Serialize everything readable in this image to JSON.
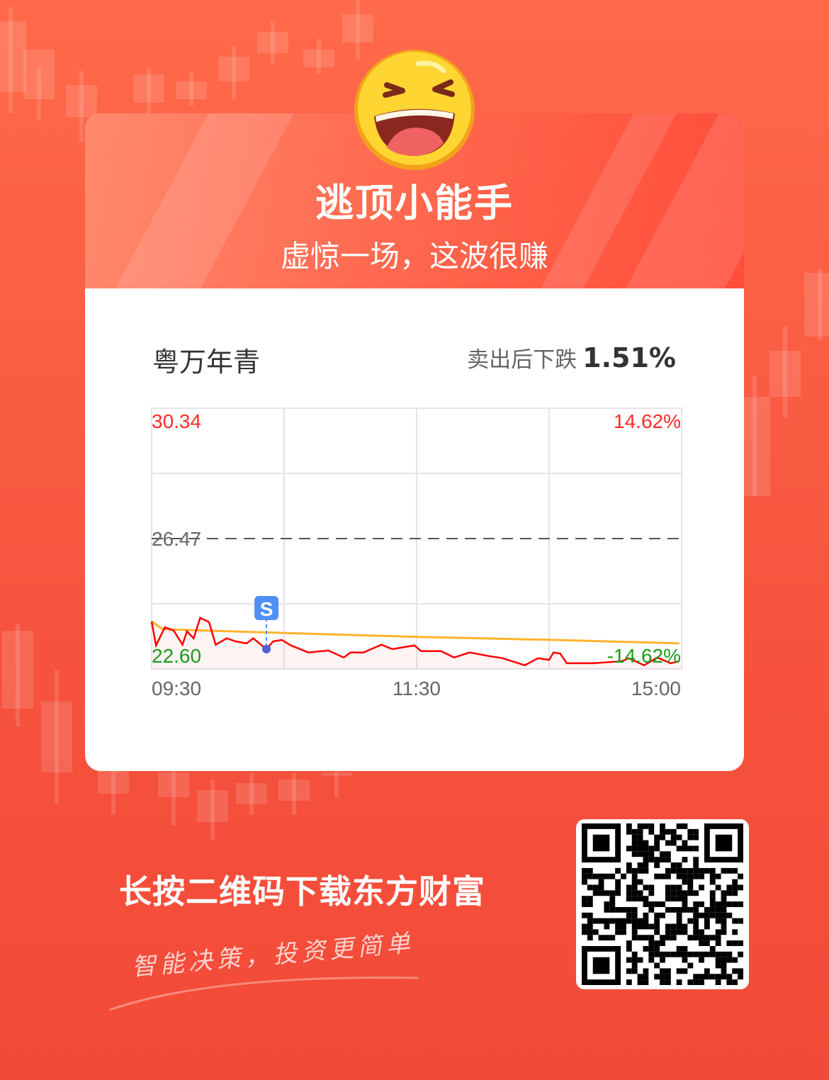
{
  "header": {
    "title": "逃顶小能手",
    "subtitle": "虚惊一场，这波很赚",
    "emoji": "laughing-face-icon"
  },
  "stock": {
    "name": "粤万年青",
    "performance_label": "卖出后下跌",
    "performance_value": "1.51%"
  },
  "chart_data": {
    "type": "line",
    "y_max_label": "30.34",
    "y_min_label": "22.60",
    "y_mid_label": "26.47",
    "pct_max_label": "14.62%",
    "pct_min_label": "-14.62%",
    "ylim": [
      22.6,
      30.34
    ],
    "prev_close": 26.47,
    "x_tick_labels": [
      "09:30",
      "11:30",
      "15:00"
    ],
    "x_range_minutes": [
      0,
      240
    ],
    "grid": true,
    "colors": {
      "price": "#ff0000",
      "average": "#ffb32e",
      "up": "#ff2a2a",
      "down": "#1a9a1a",
      "sell_marker": "#4f8ff7"
    },
    "price": {
      "minute": [
        0,
        2,
        6,
        10,
        14,
        16,
        19,
        22,
        26,
        29,
        34,
        38,
        43,
        46,
        52,
        55,
        59,
        63,
        71,
        80,
        87,
        90,
        96,
        104,
        109,
        119,
        122,
        131,
        137,
        144,
        153,
        159,
        169,
        175,
        180,
        182,
        185,
        188,
        200,
        213,
        216,
        223,
        229,
        235,
        239
      ],
      "value": [
        24.01,
        23.3,
        23.84,
        23.74,
        23.32,
        23.72,
        23.51,
        24.12,
        23.99,
        23.32,
        23.51,
        23.42,
        23.36,
        23.51,
        23.19,
        23.42,
        23.46,
        23.3,
        23.09,
        23.15,
        22.94,
        23.09,
        23.09,
        23.32,
        23.19,
        23.3,
        23.13,
        23.13,
        22.94,
        23.09,
        22.98,
        22.92,
        22.71,
        22.92,
        22.87,
        23.09,
        23.06,
        22.77,
        22.77,
        22.83,
        22.92,
        22.71,
        22.94,
        22.77,
        22.83
      ]
    },
    "average": {
      "minute": [
        0,
        5,
        24,
        59,
        122,
        184,
        239
      ],
      "value": [
        24.01,
        23.78,
        23.74,
        23.67,
        23.55,
        23.46,
        23.36
      ]
    },
    "sell_point": {
      "minute": 52,
      "value": 23.19,
      "label": "S"
    }
  },
  "footer": {
    "cta": "长按二维码下载东方财富",
    "slogan": "智能决策，投资更简单",
    "qr": "qr-code"
  }
}
